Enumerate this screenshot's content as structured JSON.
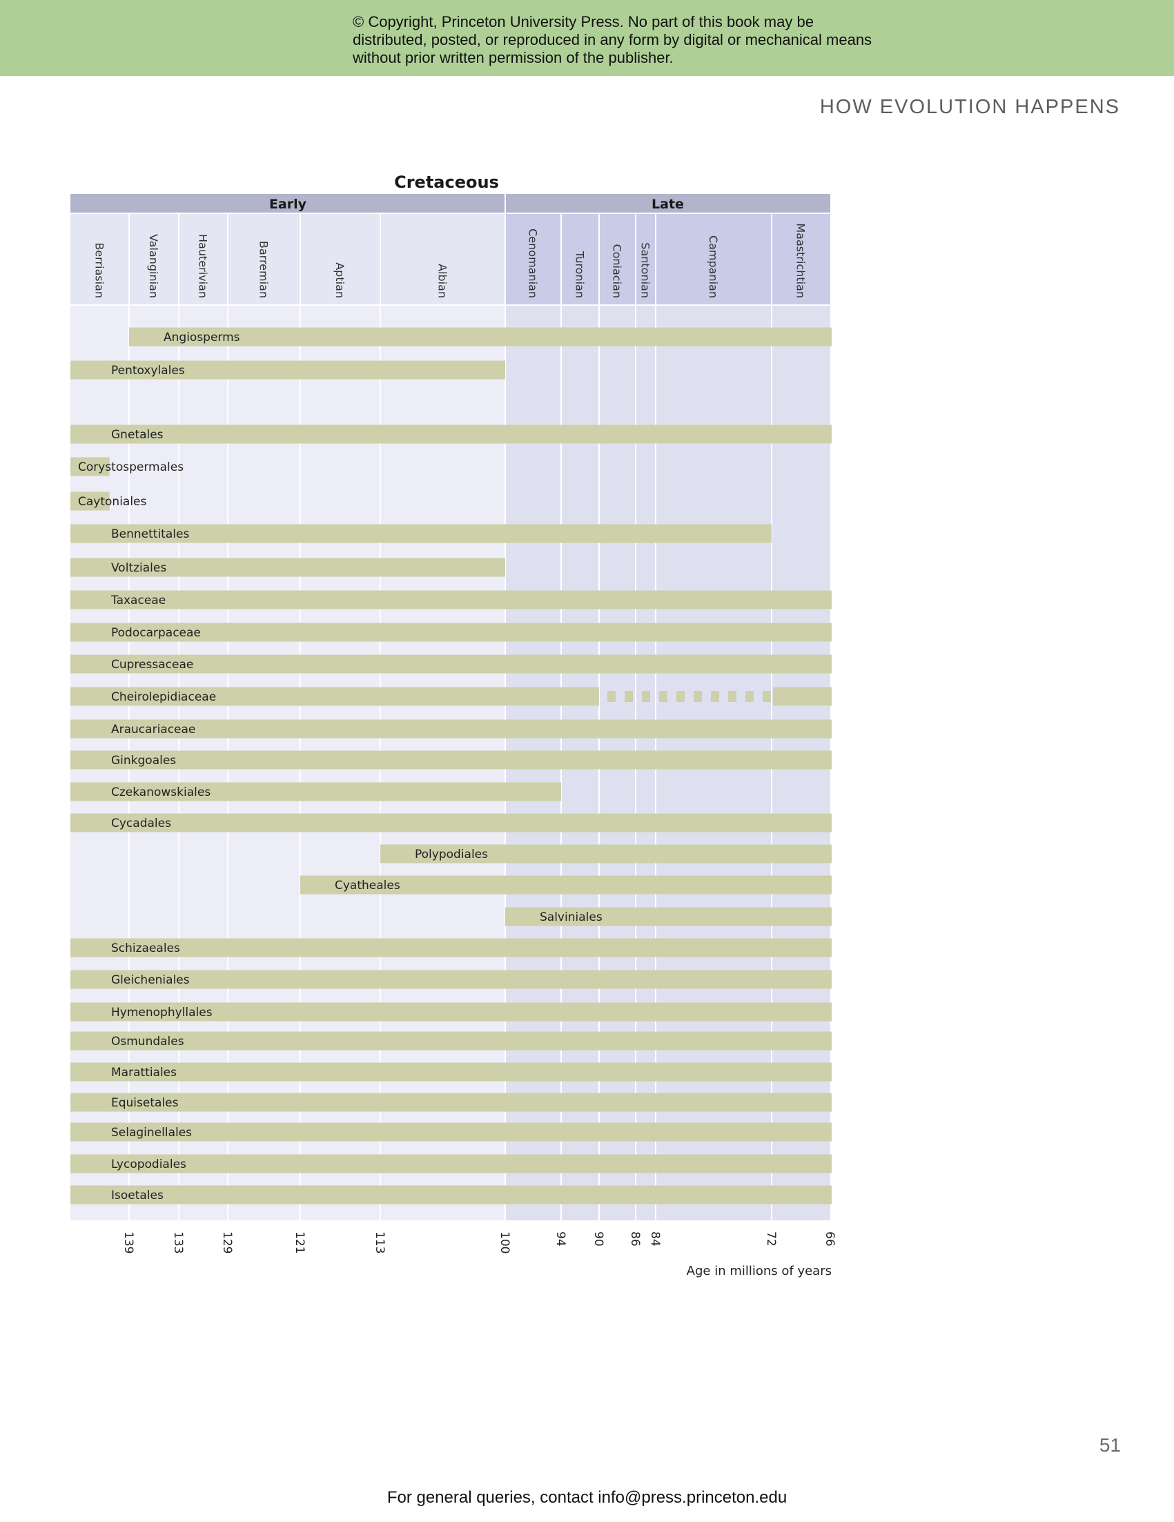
{
  "page": {
    "copyright": "© Copyright, Princeton University Press. No part of this book may be distributed, posted, or reproduced in any form by digital or mechanical means without prior written permission of the publisher.",
    "running_head": "HOW EVOLUTION HAPPENS",
    "page_number": "51",
    "footer": "For general queries, contact info@press.princeton.edu"
  },
  "colors": {
    "banner": "#aed096",
    "epoch_header": "#b2b4cb",
    "early_stage_bg": "#e5e6f3",
    "late_stage_bg": "#c8cce6",
    "early_body_bg": "#ededf7",
    "late_body_bg": "#dfe0ef",
    "bar": "#cdd0a9",
    "grid": "#ffffff"
  },
  "chart_data": {
    "type": "bar",
    "orientation": "horizontal-range",
    "title": "Cretaceous",
    "epochs": [
      {
        "name": "Early",
        "start": 145,
        "end": 100
      },
      {
        "name": "Late",
        "start": 100,
        "end": 66
      }
    ],
    "stages": [
      {
        "name": "Berriasian",
        "start": 145,
        "end": 139
      },
      {
        "name": "Valanginian",
        "start": 139,
        "end": 133
      },
      {
        "name": "Hauterivian",
        "start": 133,
        "end": 129
      },
      {
        "name": "Barremian",
        "start": 129,
        "end": 121
      },
      {
        "name": "Aptian",
        "start": 121,
        "end": 113
      },
      {
        "name": "Albian",
        "start": 113,
        "end": 100
      },
      {
        "name": "Cenomanian",
        "start": 100,
        "end": 94
      },
      {
        "name": "Turonian",
        "start": 94,
        "end": 90
      },
      {
        "name": "Coniacian",
        "start": 90,
        "end": 86
      },
      {
        "name": "Santonian",
        "start": 86,
        "end": 84
      },
      {
        "name": "Campanian",
        "start": 84,
        "end": 72
      },
      {
        "name": "Maastrichtian",
        "start": 72,
        "end": 66
      }
    ],
    "xlabel": "Age in millions of years",
    "xticks": [
      139,
      133,
      129,
      121,
      113,
      100,
      94,
      90,
      86,
      84,
      72,
      66
    ],
    "xlim": [
      145,
      66
    ],
    "series": [
      {
        "name": "Angiosperms",
        "start": 139,
        "end": 66
      },
      {
        "name": "Pentoxylales",
        "start": 145,
        "end": 100
      },
      {
        "name": "Gnetales",
        "start": 145,
        "end": 66
      },
      {
        "name": "Corystospermales",
        "start": 145,
        "end": 141
      },
      {
        "name": "Caytoniales",
        "start": 145,
        "end": 141
      },
      {
        "name": "Bennettitales",
        "start": 145,
        "end": 72
      },
      {
        "name": "Voltziales",
        "start": 145,
        "end": 100
      },
      {
        "name": "Taxaceae",
        "start": 145,
        "end": 66
      },
      {
        "name": "Podocarpaceae",
        "start": 145,
        "end": 66
      },
      {
        "name": "Cupressaceae",
        "start": 145,
        "end": 66
      },
      {
        "name": "Cheirolepidiaceae",
        "start": 145,
        "end": 66,
        "gap": [
          90,
          72
        ]
      },
      {
        "name": "Araucariaceae",
        "start": 145,
        "end": 66
      },
      {
        "name": "Ginkgoales",
        "start": 145,
        "end": 66
      },
      {
        "name": "Czekanowskiales",
        "start": 145,
        "end": 94
      },
      {
        "name": "Cycadales",
        "start": 145,
        "end": 66
      },
      {
        "name": "Polypodiales",
        "start": 113,
        "end": 66
      },
      {
        "name": "Cyatheales",
        "start": 121,
        "end": 66
      },
      {
        "name": "Salviniales",
        "start": 100,
        "end": 66
      },
      {
        "name": "Schizaeales",
        "start": 145,
        "end": 66
      },
      {
        "name": "Gleicheniales",
        "start": 145,
        "end": 66
      },
      {
        "name": "Hymenophyllales",
        "start": 145,
        "end": 66
      },
      {
        "name": "Osmundales",
        "start": 145,
        "end": 66
      },
      {
        "name": "Marattiales",
        "start": 145,
        "end": 66
      },
      {
        "name": "Equisetales",
        "start": 145,
        "end": 66
      },
      {
        "name": "Selaginellales",
        "start": 145,
        "end": 66
      },
      {
        "name": "Lycopodiales",
        "start": 145,
        "end": 66
      },
      {
        "name": "Isoetales",
        "start": 145,
        "end": 66
      }
    ]
  }
}
